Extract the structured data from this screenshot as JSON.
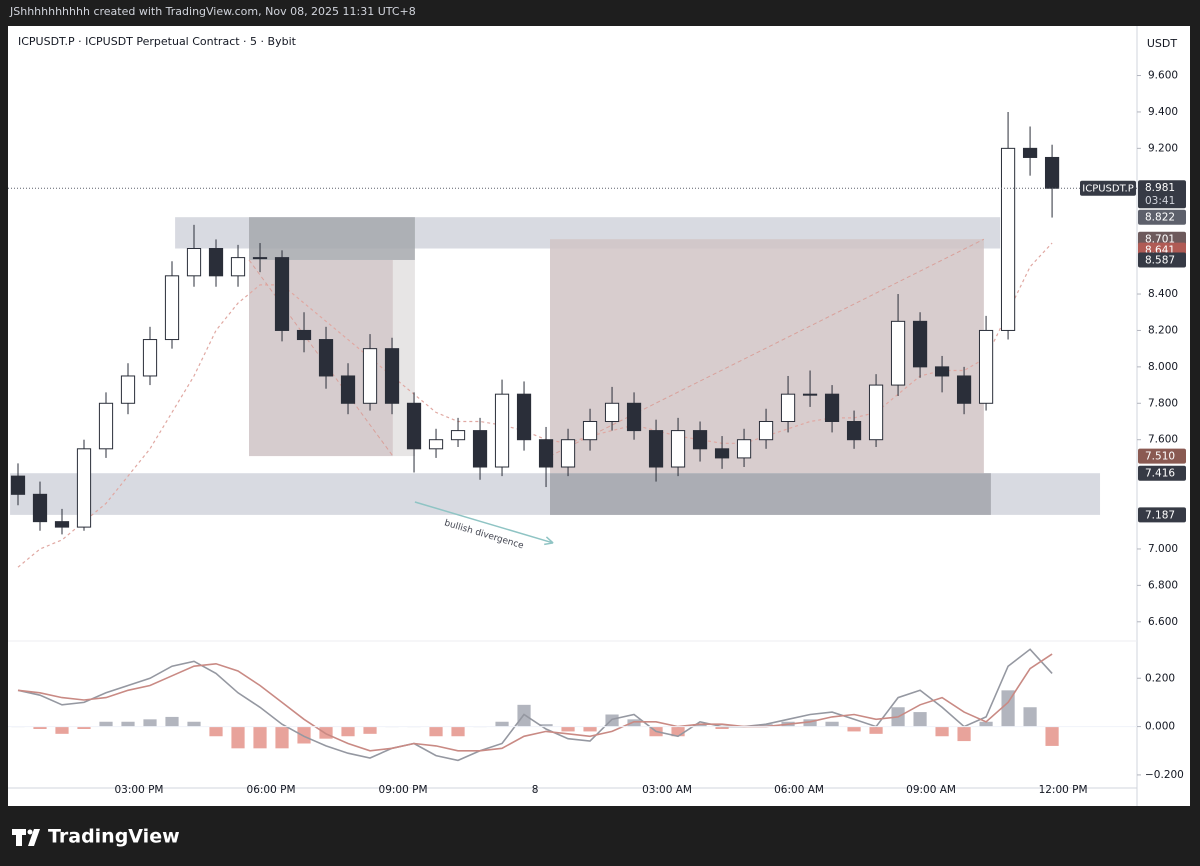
{
  "header": "JShhhhhhhhhh created with TradingView.com, Nov 08, 2025 11:31 UTC+8",
  "brand": "TradingView",
  "chart_data": {
    "type": "candlestick",
    "title": "ICPUSDT.P · ICPUSDT Perpetual Contract · 5 · Bybit",
    "y_unit": "USDT",
    "xlim": [
      0,
      25.68
    ],
    "xticks": [
      {
        "value": 3,
        "label": "03:00 PM"
      },
      {
        "value": 6,
        "label": "06:00 PM"
      },
      {
        "value": 9,
        "label": "09:00 PM"
      },
      {
        "value": 12,
        "label": "8"
      },
      {
        "value": 15,
        "label": "03:00 AM"
      },
      {
        "value": 18,
        "label": "06:00 AM"
      },
      {
        "value": 21,
        "label": "09:00 AM"
      },
      {
        "value": 24,
        "label": "12:00 PM"
      }
    ],
    "ylim": [
      6.5,
      9.85
    ],
    "yticks": [
      {
        "value": 9.6,
        "label": "9.600"
      },
      {
        "value": 9.4,
        "label": "9.400"
      },
      {
        "value": 9.2,
        "label": "9.200"
      },
      {
        "value": 8.4,
        "label": "8.400"
      },
      {
        "value": 8.2,
        "label": "8.200"
      },
      {
        "value": 8.0,
        "label": "8.000"
      },
      {
        "value": 7.8,
        "label": "7.800"
      },
      {
        "value": 7.6,
        "label": "7.600"
      },
      {
        "value": 7.0,
        "label": "7.000"
      },
      {
        "value": 6.8,
        "label": "6.800"
      },
      {
        "value": 6.6,
        "label": "6.600"
      }
    ],
    "y2lim": [
      -0.25,
      0.35
    ],
    "y2ticks": [
      {
        "value": 0.2,
        "label": "0.200"
      },
      {
        "value": 0,
        "label": "0.000"
      },
      {
        "value": -0.2,
        "label": "−0.200"
      }
    ],
    "up_color": "#ffffff",
    "down_color": "#2a2e39",
    "wick_color": "#2a2e39",
    "x": [
      0.25,
      0.75,
      1.25,
      1.75,
      2.25,
      2.75,
      3.25,
      3.75,
      4.25,
      4.75,
      5.25,
      5.75,
      6.25,
      6.75,
      7.25,
      7.75,
      8.25,
      8.75,
      9.25,
      9.75,
      10.25,
      10.75,
      11.25,
      11.75,
      12.25,
      12.75,
      13.25,
      13.75,
      14.25,
      14.75,
      15.25,
      15.75,
      16.25,
      16.75,
      17.25,
      17.75,
      18.25,
      18.75,
      19.25,
      19.75,
      20.25,
      20.75,
      21.25,
      21.75,
      22.25,
      22.75,
      23.25,
      23.75
    ],
    "open": [
      7.4,
      7.3,
      7.15,
      7.12,
      7.55,
      7.8,
      7.95,
      8.15,
      8.5,
      8.65,
      8.5,
      8.6,
      8.6,
      8.2,
      8.15,
      7.95,
      7.8,
      8.1,
      7.8,
      7.55,
      7.6,
      7.65,
      7.45,
      7.85,
      7.6,
      7.45,
      7.6,
      7.7,
      7.8,
      7.65,
      7.45,
      7.65,
      7.55,
      7.5,
      7.6,
      7.7,
      7.85,
      7.85,
      7.7,
      7.6,
      7.9,
      8.25,
      8.0,
      7.95,
      7.8,
      8.2,
      9.2,
      9.15
    ],
    "high": [
      7.47,
      7.37,
      7.22,
      7.6,
      7.86,
      8.02,
      8.22,
      8.58,
      8.78,
      8.7,
      8.67,
      8.68,
      8.64,
      8.3,
      8.22,
      8.02,
      8.18,
      8.16,
      7.86,
      7.66,
      7.72,
      7.72,
      7.93,
      7.92,
      7.67,
      7.66,
      7.77,
      7.89,
      7.86,
      7.71,
      7.72,
      7.7,
      7.62,
      7.66,
      7.77,
      7.95,
      7.98,
      7.9,
      7.76,
      7.96,
      8.4,
      8.3,
      8.06,
      8.0,
      8.28,
      9.4,
      9.32,
      9.22
    ],
    "low": [
      7.24,
      7.1,
      7.08,
      7.1,
      7.5,
      7.74,
      7.9,
      8.1,
      8.44,
      8.44,
      8.44,
      8.52,
      8.14,
      8.08,
      7.88,
      7.74,
      7.76,
      7.74,
      7.42,
      7.5,
      7.56,
      7.38,
      7.4,
      7.54,
      7.34,
      7.4,
      7.54,
      7.65,
      7.6,
      7.37,
      7.4,
      7.48,
      7.44,
      7.45,
      7.55,
      7.64,
      7.78,
      7.64,
      7.55,
      7.56,
      7.84,
      7.94,
      7.86,
      7.74,
      7.76,
      8.15,
      9.05,
      8.82
    ],
    "close": [
      7.3,
      7.15,
      7.12,
      7.55,
      7.8,
      7.95,
      8.15,
      8.5,
      8.65,
      8.5,
      8.6,
      8.6,
      8.2,
      8.15,
      7.95,
      7.8,
      8.1,
      7.8,
      7.55,
      7.6,
      7.65,
      7.45,
      7.85,
      7.6,
      7.45,
      7.6,
      7.7,
      7.8,
      7.65,
      7.45,
      7.65,
      7.55,
      7.5,
      7.6,
      7.7,
      7.85,
      7.85,
      7.7,
      7.6,
      7.9,
      8.25,
      8.0,
      7.95,
      7.8,
      8.2,
      9.2,
      9.15,
      8.981
    ],
    "ma": {
      "color": "#e0a8a2",
      "values": [
        6.9,
        7.0,
        7.05,
        7.15,
        7.25,
        7.4,
        7.55,
        7.75,
        7.95,
        8.2,
        8.35,
        8.45,
        8.45,
        8.35,
        8.25,
        8.15,
        8.05,
        7.95,
        7.85,
        7.75,
        7.7,
        7.7,
        7.68,
        7.65,
        7.6,
        7.58,
        7.62,
        7.65,
        7.68,
        7.65,
        7.62,
        7.6,
        7.58,
        7.58,
        7.62,
        7.66,
        7.7,
        7.72,
        7.72,
        7.75,
        7.85,
        7.95,
        7.98,
        7.98,
        8.05,
        8.3,
        8.55,
        8.68
      ]
    },
    "macd": {
      "color": "#9598a1",
      "values": [
        0.15,
        0.13,
        0.09,
        0.1,
        0.14,
        0.17,
        0.2,
        0.25,
        0.27,
        0.22,
        0.14,
        0.08,
        0.01,
        -0.04,
        -0.08,
        -0.11,
        -0.13,
        -0.09,
        -0.07,
        -0.12,
        -0.14,
        -0.1,
        -0.07,
        0.05,
        -0.01,
        -0.05,
        -0.06,
        0.03,
        0.05,
        -0.02,
        -0.04,
        0.02,
        0.0,
        0.0,
        0.01,
        0.03,
        0.05,
        0.06,
        0.03,
        0.0,
        0.12,
        0.15,
        0.08,
        0.0,
        0.04,
        0.25,
        0.32,
        0.22
      ]
    },
    "signal": {
      "color": "#c98a84",
      "values": [
        0.15,
        0.14,
        0.12,
        0.11,
        0.12,
        0.15,
        0.17,
        0.21,
        0.25,
        0.26,
        0.23,
        0.17,
        0.1,
        0.03,
        -0.03,
        -0.07,
        -0.1,
        -0.09,
        -0.07,
        -0.08,
        -0.1,
        -0.1,
        -0.09,
        -0.04,
        -0.02,
        -0.03,
        -0.04,
        -0.02,
        0.02,
        0.02,
        0.0,
        0.01,
        0.01,
        0.0,
        0.0,
        0.01,
        0.02,
        0.04,
        0.05,
        0.03,
        0.04,
        0.09,
        0.12,
        0.06,
        0.02,
        0.1,
        0.24,
        0.3
      ]
    },
    "histogram": {
      "up_color": "#b2b5be",
      "down_color": "#e8a39b",
      "values": [
        0.0,
        -0.01,
        -0.03,
        -0.01,
        0.02,
        0.02,
        0.03,
        0.04,
        0.02,
        -0.04,
        -0.09,
        -0.09,
        -0.09,
        -0.07,
        -0.05,
        -0.04,
        -0.03,
        0.0,
        0.0,
        -0.04,
        -0.04,
        0.0,
        0.02,
        0.09,
        0.01,
        -0.02,
        -0.02,
        0.05,
        0.03,
        -0.04,
        -0.04,
        0.01,
        -0.01,
        0.0,
        0.01,
        0.02,
        0.03,
        0.02,
        -0.02,
        -0.03,
        0.08,
        0.06,
        -0.04,
        -0.06,
        0.02,
        0.15,
        0.08,
        -0.08
      ]
    },
    "zones": [
      {
        "x": [
          3.82,
          22.57
        ],
        "y": [
          8.65,
          8.822
        ],
        "color": "#d1d4dc"
      },
      {
        "x": [
          0.07,
          24.84
        ],
        "y": [
          7.187,
          7.416
        ],
        "color": "#d1d4dc"
      },
      {
        "x": [
          5.5,
          8.77
        ],
        "y": [
          7.51,
          8.587
        ],
        "color": "#cfc3c5"
      },
      {
        "x": [
          8.77,
          9.27
        ],
        "y": [
          7.51,
          8.587
        ],
        "color": "#e3e0e1"
      },
      {
        "x": [
          5.5,
          9.27
        ],
        "y": [
          8.587,
          8.822
        ],
        "color": "#a6a8ad"
      },
      {
        "x": [
          12.34,
          22.2
        ],
        "y": [
          7.416,
          8.701
        ],
        "color": "#d1c4c6"
      },
      {
        "x": [
          12.34,
          22.36
        ],
        "y": [
          7.187,
          7.416
        ],
        "color": "#a3a5ab"
      }
    ],
    "lines": [
      {
        "x": [
          5.5,
          8.77
        ],
        "y": [
          8.587,
          7.51
        ],
        "color": "#d9a19b"
      },
      {
        "x": [
          12.34,
          22.2
        ],
        "y": [
          7.51,
          8.701
        ],
        "color": "#d9a19b"
      }
    ],
    "annotation": {
      "text": "bullish divergence",
      "x": [
        9.27,
        12.41
      ],
      "y": [
        7.258,
        7.033
      ],
      "color": "#8fc4c4"
    },
    "last_price": {
      "symbol": "ICPUSDT.P",
      "value": 8.981,
      "countdown": "03:41"
    },
    "price_labels": [
      {
        "value": 8.822,
        "label": "8.822",
        "color": "#5d606b"
      },
      {
        "value": 8.701,
        "label": "8.701",
        "color": "#6d5a5c"
      },
      {
        "value": 8.641,
        "label": "8.641",
        "color": "#b05b55"
      },
      {
        "value": 8.587,
        "label": "8.587",
        "color": "#363a45"
      },
      {
        "value": 7.51,
        "label": "7.510",
        "color": "#8a5a52"
      },
      {
        "value": 7.416,
        "label": "7.416",
        "color": "#363a45"
      },
      {
        "value": 7.187,
        "label": "7.187",
        "color": "#363a45"
      }
    ]
  }
}
